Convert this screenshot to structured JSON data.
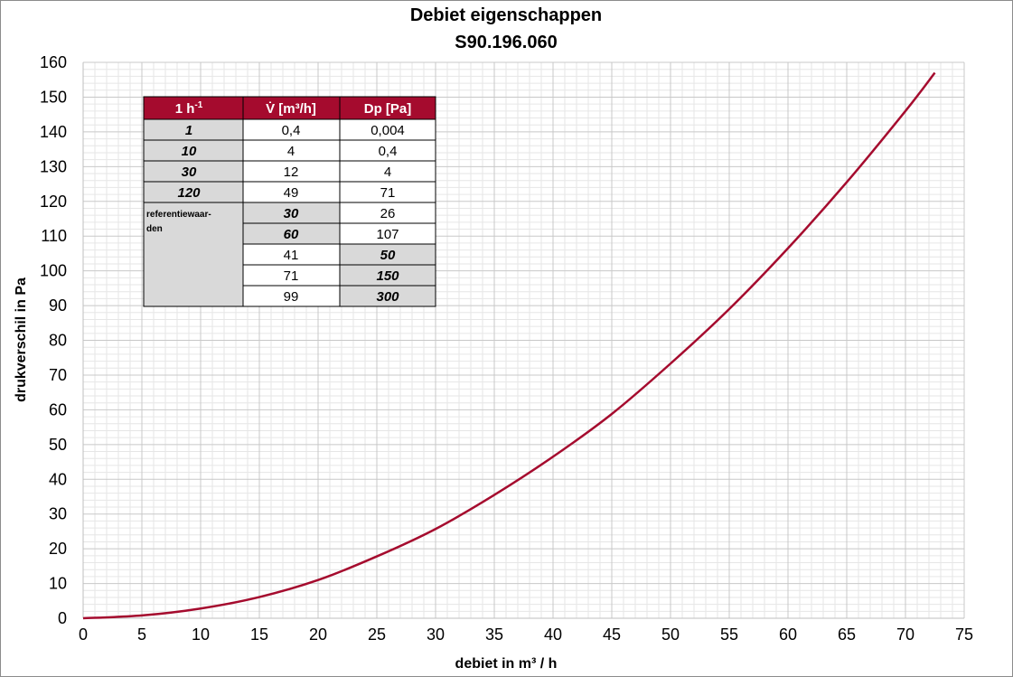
{
  "chart_data": {
    "type": "line",
    "title": "Debiet eigenschappen",
    "subtitle": "S90.196.060",
    "xlabel": "debiet in m³ / h",
    "ylabel": "drukverschil in Pa",
    "xlim": [
      0,
      75
    ],
    "ylim": [
      0,
      160
    ],
    "x_ticks": [
      0,
      5,
      10,
      15,
      20,
      25,
      30,
      35,
      40,
      45,
      50,
      55,
      60,
      65,
      70,
      75
    ],
    "y_ticks": [
      0,
      10,
      20,
      30,
      40,
      50,
      60,
      70,
      80,
      90,
      100,
      110,
      120,
      130,
      140,
      150,
      160
    ],
    "grid": true,
    "series_color": "#a50b2e",
    "series": [
      {
        "x": [
          0,
          5,
          10,
          15,
          20,
          25,
          30,
          35,
          40,
          45,
          50,
          55,
          60,
          65,
          70,
          72.5
        ],
        "y": [
          0,
          0.8,
          2.8,
          6.1,
          11,
          17.8,
          25.7,
          35.5,
          46.5,
          58.8,
          73.3,
          89,
          106.5,
          125.5,
          146,
          157
        ]
      }
    ],
    "table": {
      "headers": [
        "1 h",
        "-1",
        "V̇ [m³/h]",
        "Dp [Pa]"
      ],
      "rows": [
        [
          "1",
          "0,4",
          "0,004"
        ],
        [
          "10",
          "4",
          "0,4"
        ],
        [
          "30",
          "12",
          "4"
        ],
        [
          "120",
          "49",
          "71"
        ]
      ],
      "ref_label_1": "referentiewaar-",
      "ref_label_2": "den",
      "ref_rows": [
        [
          "30",
          "26"
        ],
        [
          "60",
          "107"
        ],
        [
          "41",
          "50"
        ],
        [
          "71",
          "150"
        ],
        [
          "99",
          "300"
        ]
      ]
    }
  }
}
